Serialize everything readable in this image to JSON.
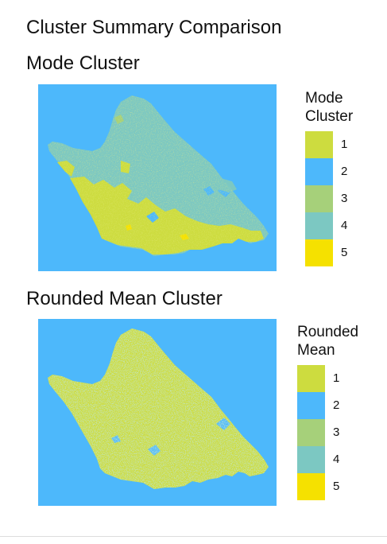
{
  "title": "Cluster Summary Comparison",
  "palette": {
    "1": "#cddc3f",
    "2": "#4db8fb",
    "3": "#a6d07a",
    "4": "#7cc8c2",
    "5": "#f5e100"
  },
  "panels": [
    {
      "title": "Mode Cluster",
      "legend_title_lines": [
        "Mode",
        "Cluster"
      ],
      "legend": [
        {
          "label": "1",
          "color": "#cddc3f"
        },
        {
          "label": "2",
          "color": "#4db8fb"
        },
        {
          "label": "3",
          "color": "#a6d07a"
        },
        {
          "label": "4",
          "color": "#7cc8c2"
        },
        {
          "label": "5",
          "color": "#f5e100"
        }
      ]
    },
    {
      "title": "Rounded Mean Cluster",
      "legend_title_lines": [
        "Rounded",
        "Mean"
      ],
      "legend": [
        {
          "label": "1",
          "color": "#cddc3f"
        },
        {
          "label": "2",
          "color": "#4db8fb"
        },
        {
          "label": "3",
          "color": "#a6d07a"
        },
        {
          "label": "4",
          "color": "#7cc8c2"
        },
        {
          "label": "5",
          "color": "#f5e100"
        }
      ]
    }
  ]
}
